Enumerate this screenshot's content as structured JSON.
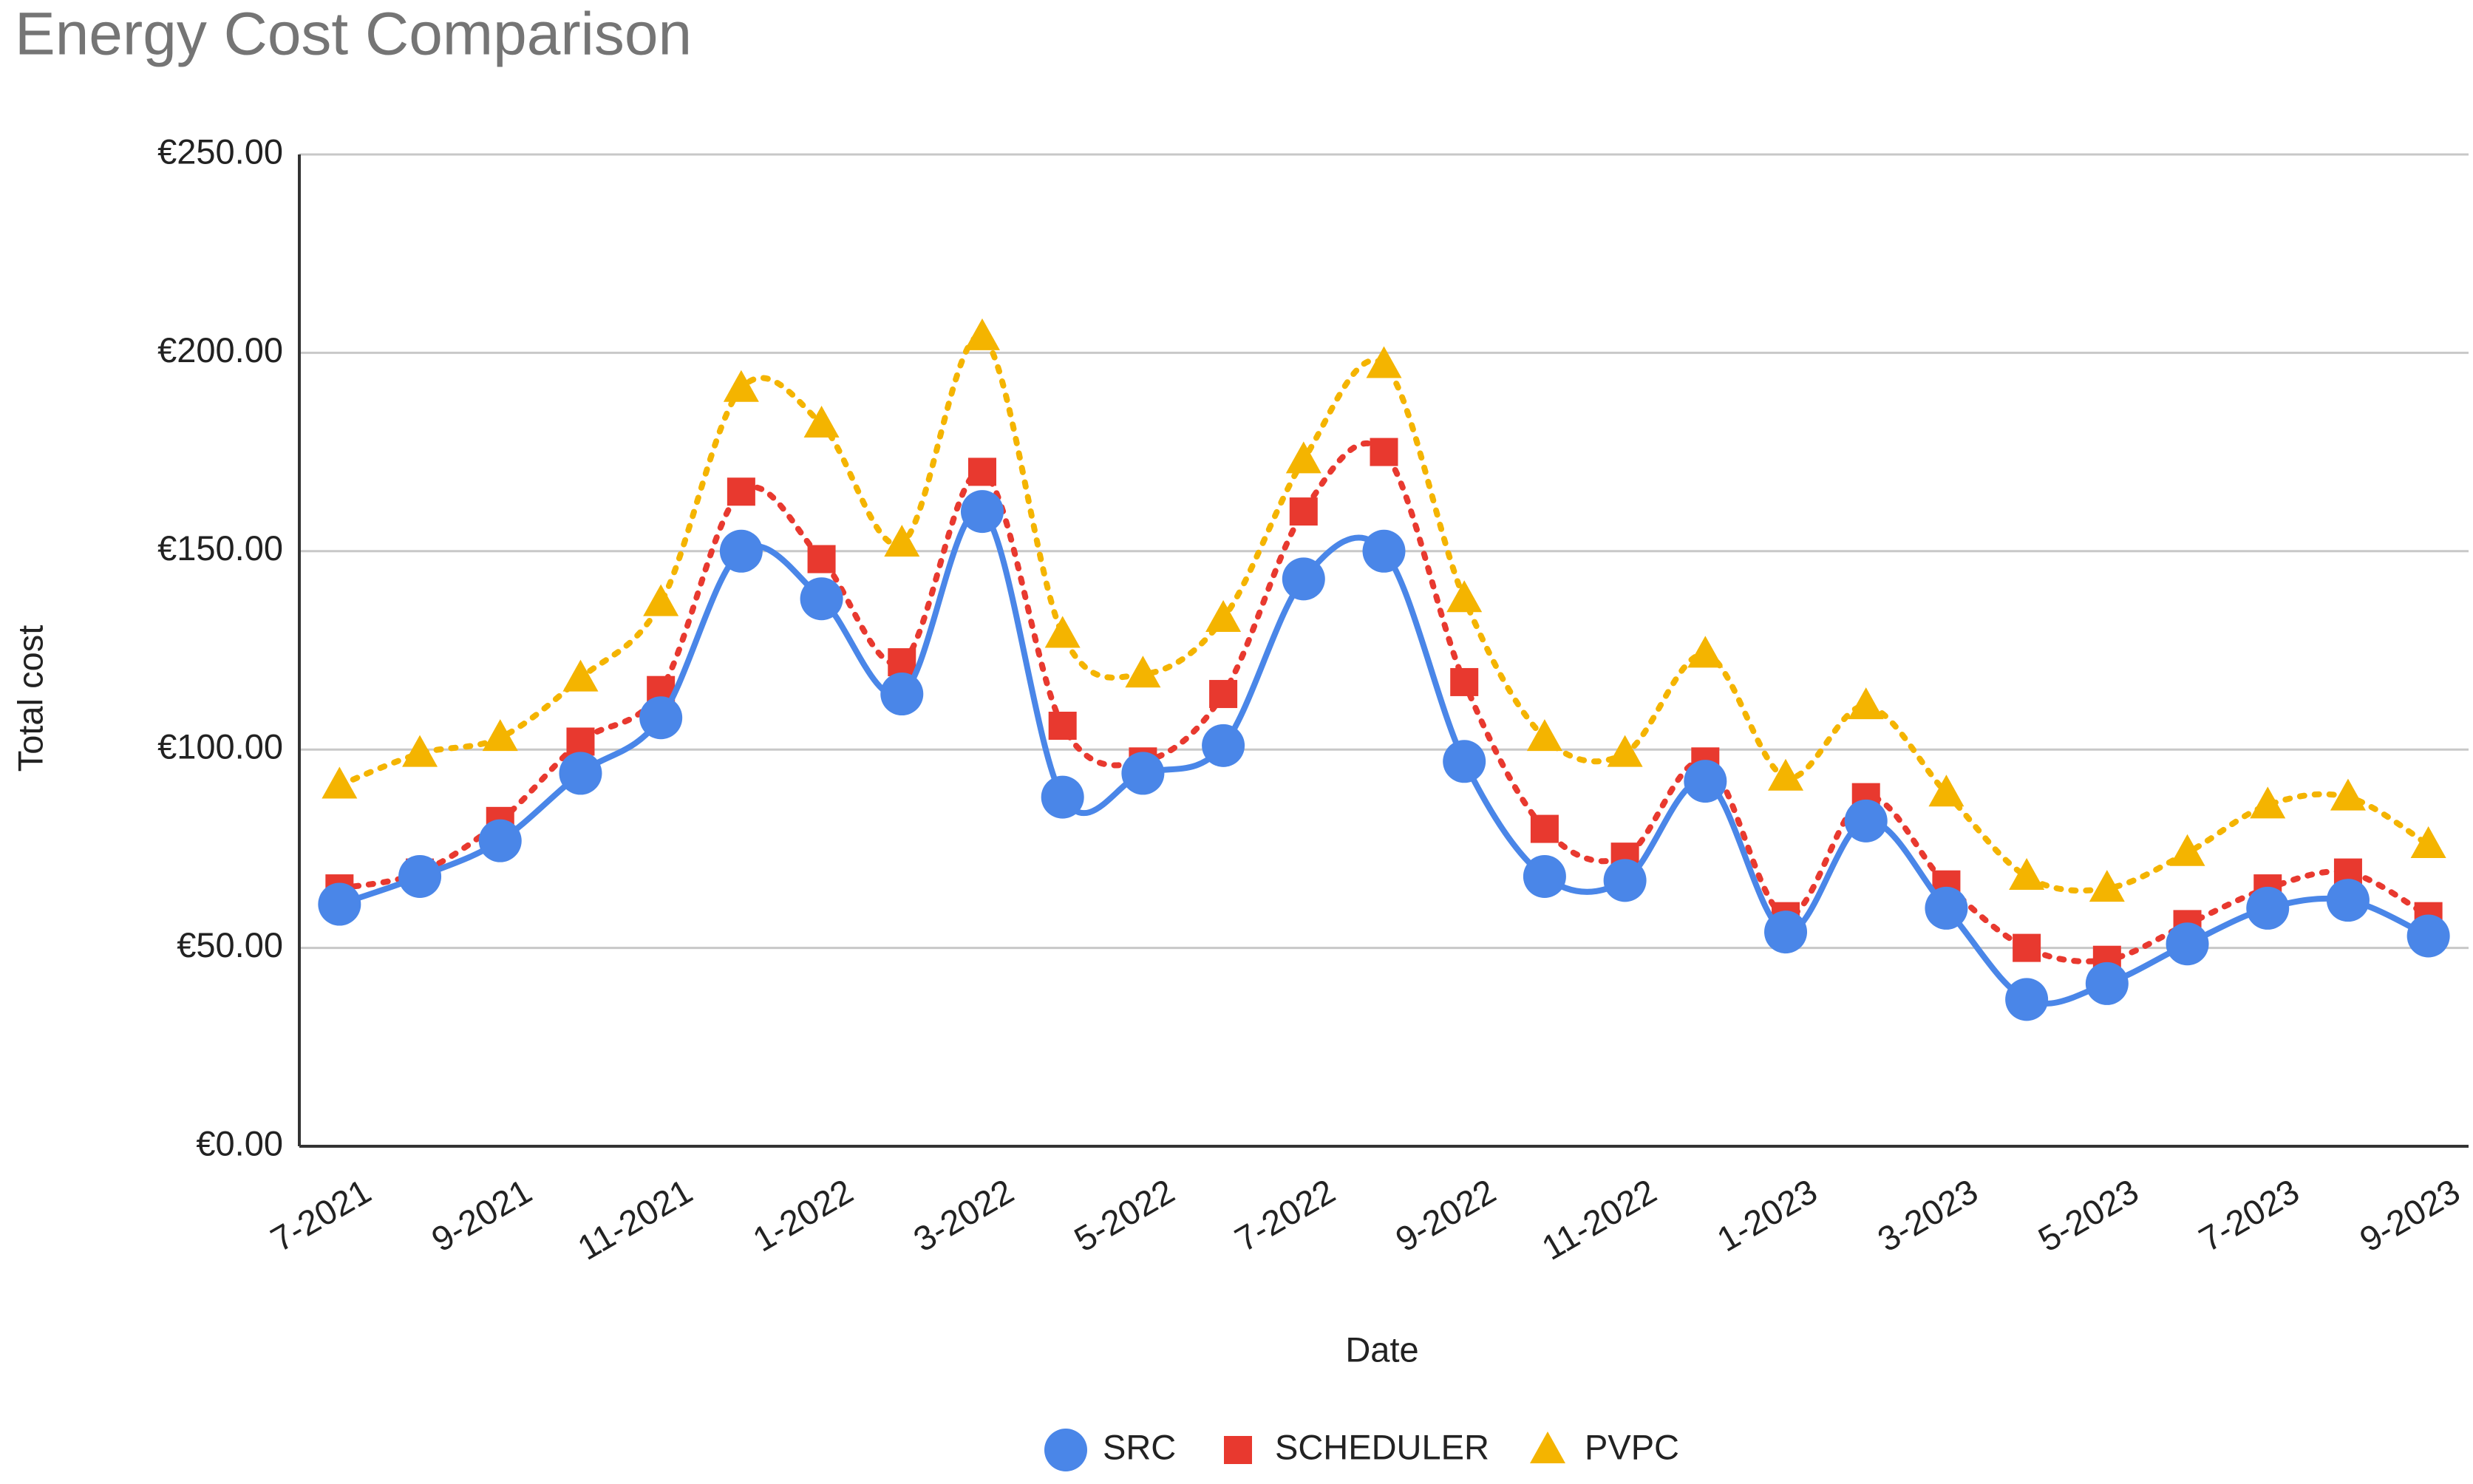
{
  "chart_data": {
    "type": "line",
    "title": "Energy Cost Comparison",
    "x_label": "Date",
    "y_label": "Total cost",
    "categories": [
      "7-2021",
      null,
      "9-2021",
      null,
      "11-2021",
      null,
      "1-2022",
      null,
      "3-2022",
      null,
      "5-2022",
      null,
      "7-2022",
      null,
      "9-2022",
      null,
      "11-2022",
      null,
      "1-2023",
      null,
      "3-2023",
      null,
      "5-2023",
      null,
      "7-2023",
      null,
      "9-2023"
    ],
    "series": [
      {
        "name": "SRC",
        "color": "#4a86e8",
        "marker": "circle",
        "line_style": "solid",
        "values": [
          61,
          68,
          77,
          94,
          108,
          150,
          138,
          114,
          160,
          88,
          94,
          101,
          143,
          150,
          97,
          68,
          67,
          92,
          54,
          82,
          60,
          37,
          41,
          51,
          60,
          62,
          53
        ]
      },
      {
        "name": "SCHEDULER",
        "color": "#e8392f",
        "marker": "square",
        "line_style": "dotted",
        "values": [
          65,
          69,
          82,
          102,
          115,
          165,
          148,
          122,
          170,
          106,
          97,
          114,
          160,
          175,
          117,
          80,
          73,
          97,
          58,
          88,
          66,
          50,
          47,
          56,
          65,
          69,
          58
        ]
      },
      {
        "name": "PVPC",
        "color": "#f4b400",
        "marker": "triangle",
        "line_style": "dotted",
        "values": [
          91,
          99,
          103,
          118,
          137,
          191,
          182,
          152,
          204,
          129,
          119,
          133,
          173,
          197,
          138,
          103,
          99,
          124,
          93,
          111,
          89,
          68,
          65,
          74,
          86,
          88,
          76
        ]
      }
    ],
    "ylim": [
      0,
      250
    ],
    "yticks": [
      {
        "value": 0,
        "label": "€0.00"
      },
      {
        "value": 50,
        "label": "€50.00"
      },
      {
        "value": 100,
        "label": "€100.00"
      },
      {
        "value": 150,
        "label": "€150.00"
      },
      {
        "value": 200,
        "label": "€200.00"
      },
      {
        "value": 250,
        "label": "€250.00"
      }
    ],
    "grid": true,
    "legend": "bottom"
  }
}
